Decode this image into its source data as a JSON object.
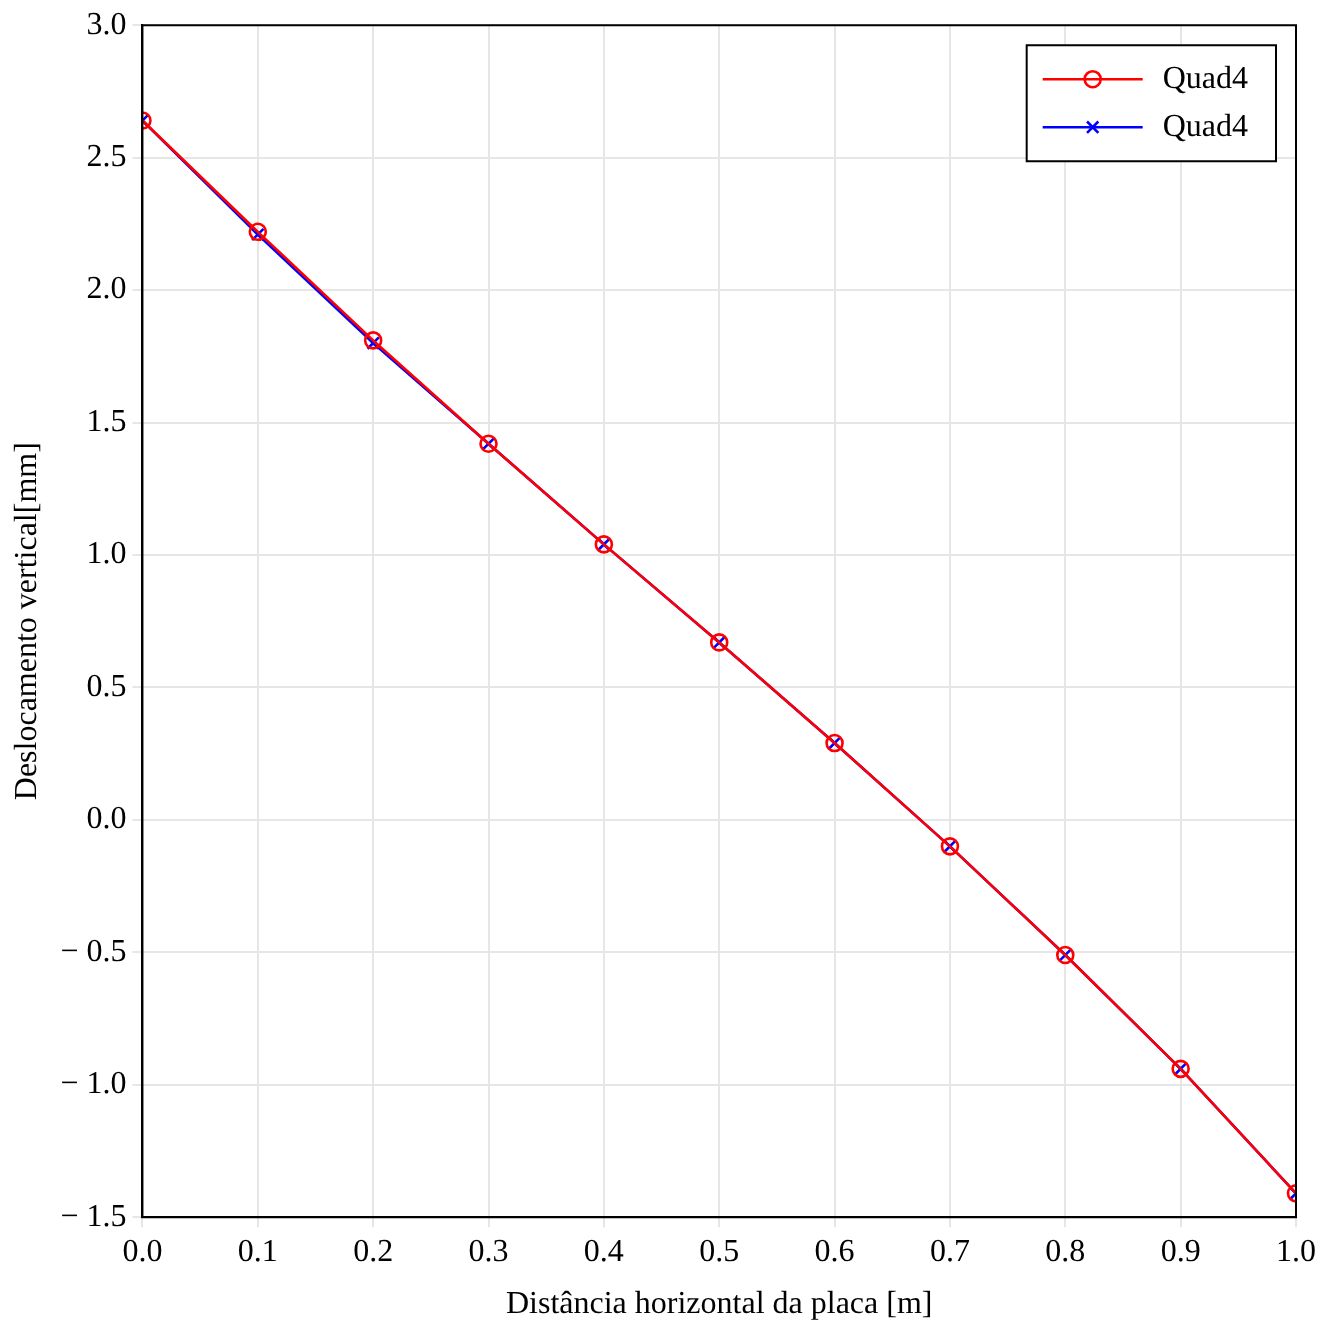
{
  "chart_data": {
    "type": "line",
    "xlabel": "Distância horizontal da placa [m]",
    "ylabel": "Deslocamento vertical[mm]",
    "x": [
      0,
      0.1,
      0.2,
      0.3,
      0.4,
      0.5,
      0.6,
      0.7,
      0.8,
      0.9,
      1.0
    ],
    "series": [
      {
        "name": "Quad4",
        "color": "#ff0000",
        "marker": "circle",
        "values": [
          2.64,
          2.22,
          1.81,
          1.42,
          1.04,
          0.67,
          0.29,
          -0.1,
          -0.51,
          -0.94,
          -1.41
        ]
      },
      {
        "name": "Quad4",
        "color": "#0000ff",
        "marker": "cross",
        "values": [
          2.64,
          2.21,
          1.8,
          1.42,
          1.04,
          0.67,
          0.29,
          -0.1,
          -0.51,
          -0.94,
          -1.41
        ]
      }
    ],
    "xlim": [
      0,
      1
    ],
    "xticks": [
      {
        "value": 0,
        "label": "0.0"
      },
      0.1,
      0.2,
      0.3,
      0.4,
      0.5,
      0.6,
      0.7,
      0.8,
      0.9,
      {
        "value": 1,
        "label": "1.0"
      }
    ],
    "ylim": [
      -1.5,
      3
    ],
    "yticks": [
      {
        "value": -1.5,
        "label": "− 1.5"
      },
      {
        "value": -1,
        "label": "− 1.0"
      },
      {
        "value": -0.5,
        "label": "− 0.5"
      },
      {
        "value": 0,
        "label": "0.0"
      },
      {
        "value": 0.5,
        "label": "0.5"
      },
      {
        "value": 1,
        "label": "1.0"
      },
      {
        "value": 1.5,
        "label": "1.5"
      },
      {
        "value": 2,
        "label": "2.0"
      },
      {
        "value": 2.5,
        "label": "2.5"
      },
      {
        "value": 3,
        "label": "3.0"
      }
    ],
    "grid": true,
    "legend": "top right",
    "line_style": "solid"
  }
}
